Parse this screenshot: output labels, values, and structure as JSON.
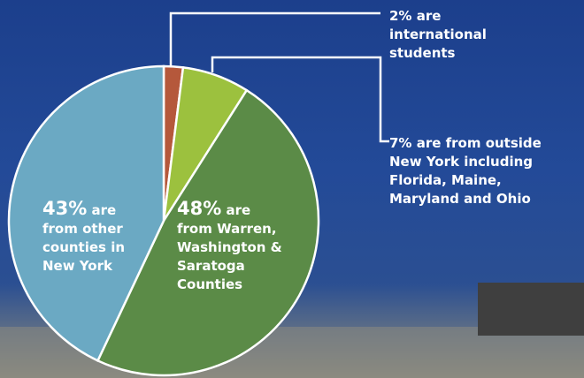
{
  "chart_data": {
    "type": "pie",
    "categories": [
      "are international students",
      "are from outside New York including Florida, Maine, Maryland and Ohio",
      "are from Warren, Washington & Saratoga Counties",
      "are from other counties in New York"
    ],
    "values": [
      2,
      7,
      48,
      43
    ],
    "value_labels": [
      "2%",
      "7%",
      "48%",
      "43%"
    ],
    "colors": [
      "#b5583b",
      "#9cc13e",
      "#5b8b47",
      "#6ba9c3"
    ]
  }
}
